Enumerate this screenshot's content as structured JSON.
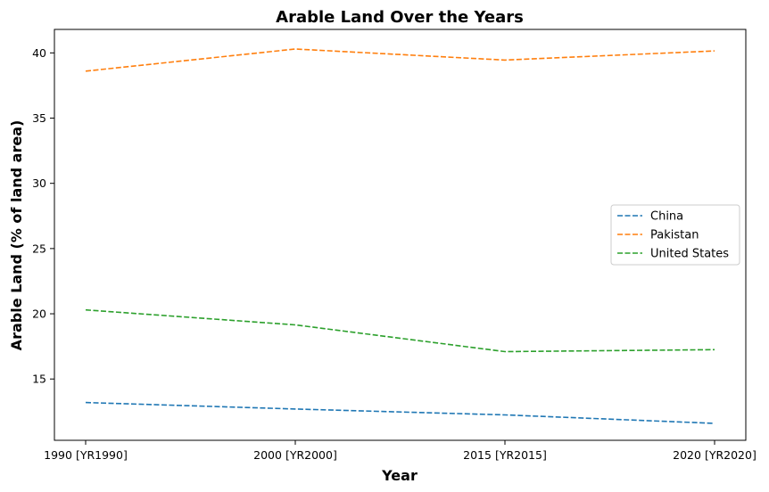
{
  "chart_data": {
    "type": "line",
    "title": "Arable Land Over the Years",
    "xlabel": "Year",
    "ylabel": "Arable Land (% of land area)",
    "categories": [
      "1990 [YR1990]",
      "2000 [YR2000]",
      "2015 [YR2015]",
      "2020 [YR2020]"
    ],
    "ylim": [
      10.3,
      41.8
    ],
    "yticks": [
      15,
      20,
      25,
      30,
      35,
      40
    ],
    "grid": false,
    "legend_position": "center-right",
    "series": [
      {
        "name": "China",
        "color": "#1f77b4",
        "values": [
          13.2,
          12.7,
          12.25,
          11.6
        ]
      },
      {
        "name": "Pakistan",
        "color": "#ff7f0e",
        "values": [
          38.6,
          40.3,
          39.45,
          40.15
        ]
      },
      {
        "name": "United States",
        "color": "#2ca02c",
        "values": [
          20.3,
          19.15,
          17.1,
          17.25
        ]
      }
    ]
  }
}
